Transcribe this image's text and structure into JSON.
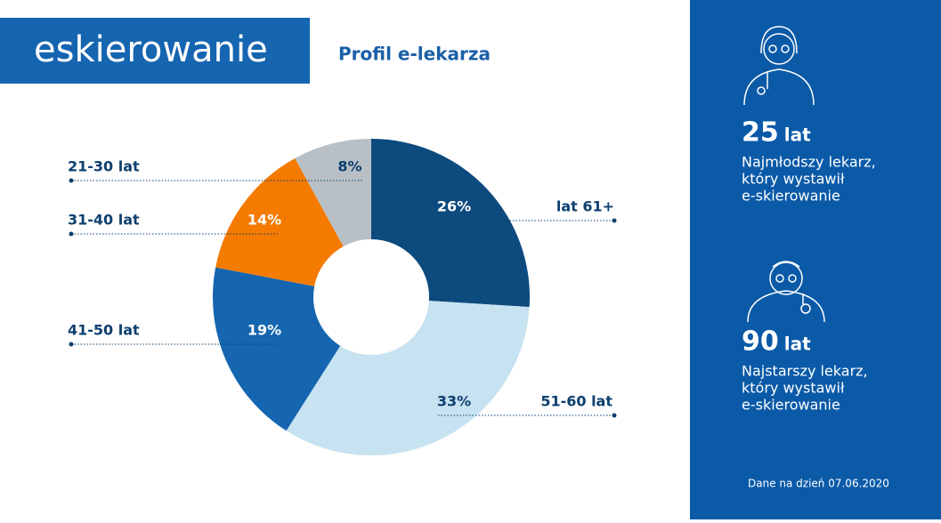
{
  "logo": "eskierowanie",
  "chart_data": {
    "type": "donut",
    "title": "Profil e-lekarza",
    "categories": [
      "lat 61+",
      "51-60 lat",
      "41-50 lat",
      "31-40 lat",
      "21-30 lat"
    ],
    "values": [
      26,
      33,
      19,
      14,
      8
    ],
    "value_labels": [
      "26%",
      "33%",
      "19%",
      "14%",
      "8%"
    ],
    "colors": [
      "#0d4a7e",
      "#c7e2f0",
      "#1565b0",
      "#f47a00",
      "#b8c0c5"
    ]
  },
  "sidebar": {
    "items": [
      {
        "value": 25,
        "unit": "lat",
        "lines": [
          "Najmłodszy lekarz,",
          "który wystawił",
          "e-skierowanie"
        ]
      },
      {
        "value": 90,
        "unit": "lat",
        "lines": [
          "Najstarszy lekarz,",
          "który wystawił",
          "e-skierowanie"
        ]
      }
    ],
    "footnote": "Dane na dzień 07.06.2020"
  }
}
